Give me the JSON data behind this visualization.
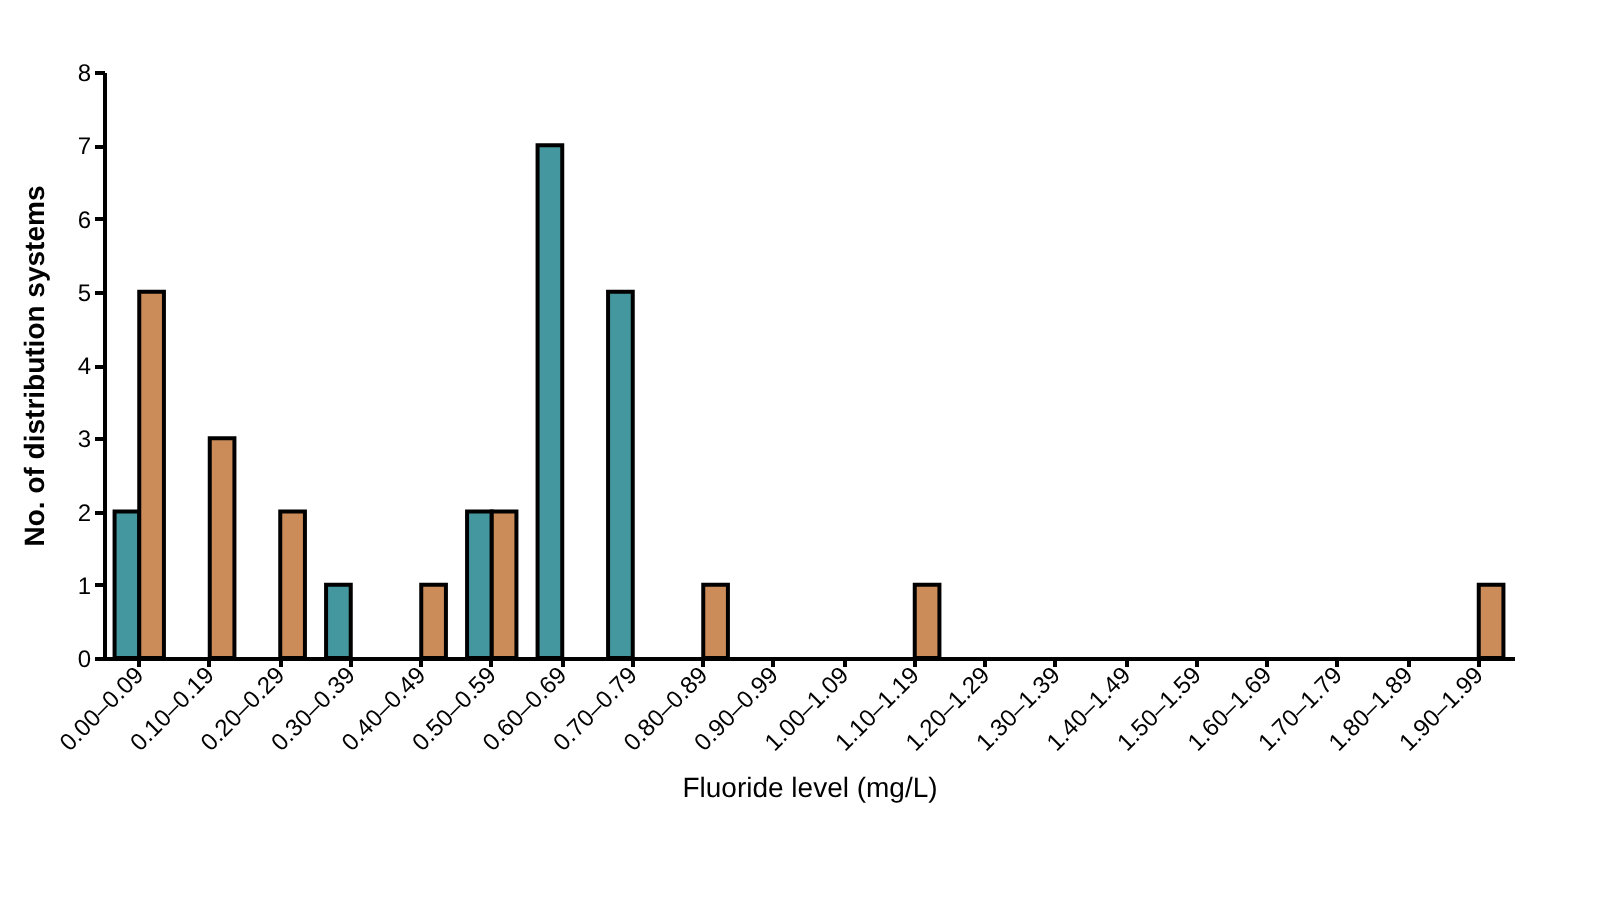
{
  "chart_data": {
    "type": "bar",
    "xlabel": "Fluoride level (mg/L)",
    "ylabel": "No. of distribution systems",
    "categories": [
      "0.00–0.09",
      "0.10–0.19",
      "0.20–0.29",
      "0.30–0.39",
      "0.40–0.49",
      "0.50–0.59",
      "0.60–0.69",
      "0.70–0.79",
      "0.80–0.89",
      "0.90–0.99",
      "1.00–1.09",
      "1.10–1.19",
      "1.20–1.29",
      "1.30–1.39",
      "1.40–1.49",
      "1.50–1.59",
      "1.60–1.69",
      "1.70–1.79",
      "1.80–1.89",
      "1.90–1.99"
    ],
    "series": [
      {
        "color": "#45979f",
        "values": [
          2,
          0,
          0,
          1,
          0,
          2,
          7,
          5,
          0,
          0,
          0,
          0,
          0,
          0,
          0,
          0,
          0,
          0,
          0,
          0
        ]
      },
      {
        "color": "#cc8c5a",
        "values": [
          5,
          3,
          2,
          0,
          1,
          2,
          0,
          0,
          1,
          0,
          0,
          1,
          0,
          0,
          0,
          0,
          0,
          0,
          0,
          1
        ]
      }
    ],
    "ylim": [
      0,
      8
    ],
    "yticks": [
      0,
      1,
      2,
      3,
      4,
      5,
      6,
      7,
      8
    ],
    "grid": false,
    "legend": false
  }
}
